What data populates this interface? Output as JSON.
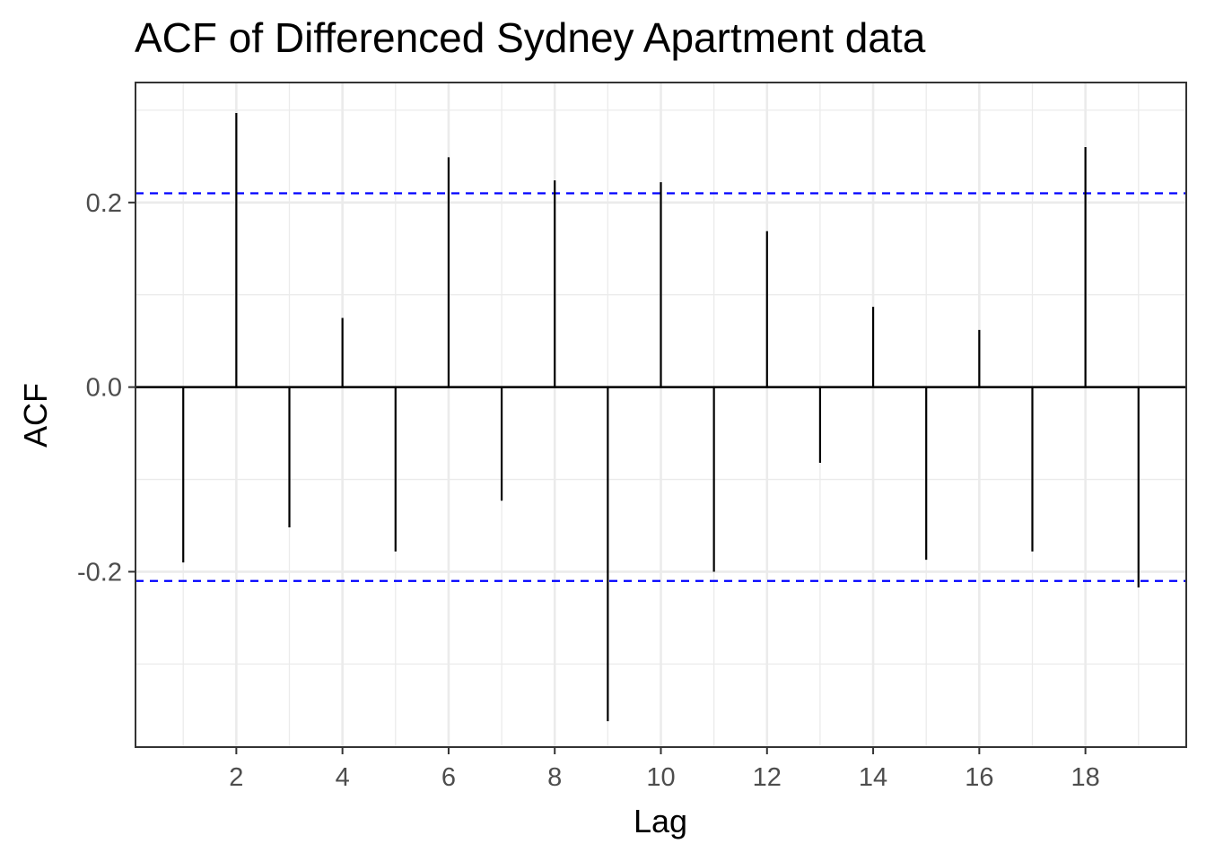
{
  "chart_data": {
    "type": "bar",
    "title": "ACF of Differenced Sydney Apartment data",
    "xlabel": "Lag",
    "ylabel": "ACF",
    "lags": [
      1,
      2,
      3,
      4,
      5,
      6,
      7,
      8,
      9,
      10,
      11,
      12,
      13,
      14,
      15,
      16,
      17,
      18,
      19
    ],
    "values": [
      -0.19,
      0.297,
      -0.152,
      0.075,
      -0.178,
      0.249,
      -0.123,
      0.224,
      -0.362,
      0.222,
      -0.2,
      0.169,
      -0.082,
      0.087,
      -0.187,
      0.062,
      -0.178,
      0.26,
      -0.217
    ],
    "confidence_bound": 0.21,
    "xlim": [
      0.1,
      19.9
    ],
    "ylim": [
      -0.39,
      0.33
    ],
    "x_ticks": [
      2,
      4,
      6,
      8,
      10,
      12,
      14,
      16,
      18
    ],
    "x_tick_labels": [
      "2",
      "4",
      "6",
      "8",
      "10",
      "12",
      "14",
      "16",
      "18"
    ],
    "y_ticks": [
      -0.2,
      0.0,
      0.2
    ],
    "y_tick_labels": [
      "-0.2",
      "0.0",
      "0.2"
    ],
    "grid": true,
    "colors": {
      "stem": "#000000",
      "confidence": "#0000ff",
      "grid": "#ebebeb",
      "border": "#333333"
    }
  }
}
